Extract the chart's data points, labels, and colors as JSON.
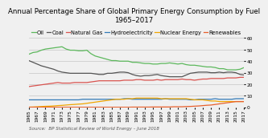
{
  "title": "Annual Percentage Share of Global Primary Energy Consumption by Fuel\n1965–2017",
  "source": "Source:  BP Statistical Review of World Energy – June 2018",
  "years": [
    1965,
    1966,
    1967,
    1968,
    1969,
    1970,
    1971,
    1972,
    1973,
    1974,
    1975,
    1976,
    1977,
    1978,
    1979,
    1980,
    1981,
    1982,
    1983,
    1984,
    1985,
    1986,
    1987,
    1988,
    1989,
    1990,
    1991,
    1992,
    1993,
    1994,
    1995,
    1996,
    1997,
    1998,
    1999,
    2000,
    2001,
    2002,
    2003,
    2004,
    2005,
    2006,
    2007,
    2008,
    2009,
    2010,
    2011,
    2012,
    2013,
    2014,
    2015,
    2016,
    2017
  ],
  "series": {
    "Oil": [
      46.0,
      47.5,
      48.0,
      49.5,
      50.5,
      51.0,
      51.5,
      52.0,
      52.5,
      50.5,
      49.5,
      49.5,
      49.0,
      49.0,
      49.5,
      46.5,
      44.5,
      43.5,
      42.5,
      41.5,
      40.5,
      40.5,
      40.0,
      40.0,
      40.0,
      39.0,
      39.0,
      38.5,
      38.0,
      38.0,
      37.5,
      37.5,
      38.0,
      38.0,
      38.5,
      38.0,
      37.5,
      38.0,
      37.0,
      36.5,
      36.5,
      36.0,
      35.5,
      35.0,
      35.0,
      34.5,
      33.5,
      33.5,
      32.5,
      32.5,
      32.5,
      33.0,
      34.5
    ],
    "Coal": [
      40.5,
      39.0,
      37.5,
      36.0,
      35.0,
      34.0,
      33.0,
      31.5,
      30.5,
      30.0,
      29.5,
      29.5,
      29.5,
      29.5,
      29.5,
      29.5,
      29.0,
      28.5,
      28.5,
      29.5,
      29.5,
      30.0,
      30.5,
      30.5,
      30.0,
      28.5,
      27.5,
      27.0,
      27.5,
      27.5,
      28.0,
      28.5,
      27.5,
      27.0,
      26.5,
      26.5,
      26.5,
      26.5,
      28.0,
      29.5,
      30.0,
      30.5,
      30.5,
      30.5,
      30.0,
      30.0,
      30.5,
      30.0,
      30.5,
      30.5,
      30.0,
      28.5,
      28.0
    ],
    "Natural Gas": [
      18.0,
      18.5,
      19.0,
      19.5,
      20.0,
      20.5,
      21.0,
      21.5,
      21.0,
      21.0,
      21.0,
      21.5,
      21.5,
      21.5,
      21.5,
      22.0,
      22.5,
      23.0,
      23.0,
      23.0,
      23.0,
      23.0,
      23.0,
      23.5,
      23.5,
      23.5,
      24.0,
      24.0,
      23.5,
      23.5,
      23.5,
      24.0,
      23.5,
      24.0,
      24.0,
      24.0,
      24.0,
      24.5,
      24.0,
      24.0,
      23.5,
      24.0,
      24.5,
      24.5,
      25.0,
      25.0,
      25.0,
      25.0,
      25.5,
      25.5,
      25.5,
      26.0,
      26.0
    ],
    "Hydroelectricity": [
      6.5,
      6.5,
      6.5,
      6.5,
      6.5,
      6.5,
      6.5,
      6.5,
      6.5,
      6.5,
      6.5,
      6.5,
      6.5,
      7.0,
      7.0,
      7.0,
      7.0,
      7.0,
      7.0,
      7.0,
      7.0,
      7.0,
      7.0,
      7.5,
      7.5,
      7.0,
      7.0,
      7.0,
      7.0,
      7.0,
      7.0,
      7.0,
      7.0,
      7.5,
      7.0,
      7.0,
      7.0,
      7.0,
      7.0,
      6.5,
      6.5,
      7.0,
      7.0,
      7.0,
      7.0,
      7.5,
      7.0,
      7.0,
      7.0,
      7.0,
      7.5,
      7.5,
      7.5
    ],
    "Nuclear Energy": [
      0.2,
      0.3,
      0.5,
      0.7,
      0.9,
      1.0,
      1.2,
      1.5,
      1.7,
      2.0,
      2.3,
      2.5,
      2.8,
      3.0,
      3.5,
      4.0,
      4.5,
      5.0,
      5.5,
      6.0,
      6.5,
      7.0,
      7.0,
      7.0,
      7.5,
      7.5,
      8.0,
      8.0,
      8.0,
      8.0,
      8.0,
      8.0,
      7.5,
      7.5,
      7.5,
      7.5,
      7.5,
      7.5,
      7.5,
      7.0,
      6.5,
      6.5,
      6.5,
      6.0,
      5.5,
      5.5,
      5.0,
      5.0,
      5.0,
      5.0,
      5.0,
      5.0,
      5.0
    ],
    "Renewables": [
      0.1,
      0.1,
      0.1,
      0.1,
      0.1,
      0.1,
      0.1,
      0.1,
      0.1,
      0.1,
      0.1,
      0.1,
      0.1,
      0.1,
      0.1,
      0.1,
      0.1,
      0.1,
      0.1,
      0.1,
      0.1,
      0.1,
      0.1,
      0.1,
      0.1,
      0.2,
      0.2,
      0.2,
      0.2,
      0.2,
      0.3,
      0.3,
      0.3,
      0.3,
      0.3,
      0.5,
      0.5,
      0.5,
      0.7,
      0.8,
      1.0,
      1.2,
      1.5,
      1.8,
      2.0,
      2.5,
      3.0,
      3.5,
      4.0,
      4.5,
      5.0,
      5.0,
      5.0
    ]
  },
  "colors": {
    "Oil": "#5cb85c",
    "Coal": "#555555",
    "Natural Gas": "#d9534f",
    "Hydroelectricity": "#337ab7",
    "Nuclear Energy": "#f0a500",
    "Renewables": "#e8602c"
  },
  "ylim": [
    0,
    60
  ],
  "yticks": [
    0,
    10,
    20,
    30,
    40,
    50,
    60
  ],
  "background_color": "#f0f0f0",
  "title_fontsize": 6.2,
  "legend_fontsize": 4.8,
  "tick_fontsize": 4.2,
  "source_fontsize": 4.0,
  "linewidth": 0.9
}
